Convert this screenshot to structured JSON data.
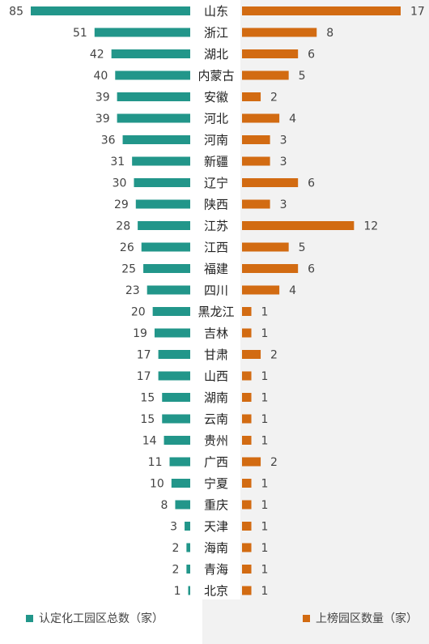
{
  "colors": {
    "left_bar": "#22968a",
    "right_bar": "#d26b12",
    "right_panel_bg": "#f2f2f2",
    "label_text": "#222222",
    "value_text": "#444444"
  },
  "chart_data": {
    "type": "bar",
    "orientation": "horizontal",
    "layout": "butterfly",
    "categories": [
      "山东",
      "浙江",
      "湖北",
      "内蒙古",
      "安徽",
      "河北",
      "河南",
      "新疆",
      "辽宁",
      "陕西",
      "江苏",
      "江西",
      "福建",
      "四川",
      "黑龙江",
      "吉林",
      "甘肃",
      "山西",
      "湖南",
      "云南",
      "贵州",
      "广西",
      "宁夏",
      "重庆",
      "天津",
      "海南",
      "青海",
      "北京"
    ],
    "series": [
      {
        "name": "认定化工园区总数（家）",
        "side": "left",
        "values": [
          85,
          51,
          42,
          40,
          39,
          39,
          36,
          31,
          30,
          29,
          28,
          26,
          25,
          23,
          20,
          19,
          17,
          17,
          15,
          15,
          14,
          11,
          10,
          8,
          3,
          2,
          2,
          1
        ]
      },
      {
        "name": "上榜园区数量（家）",
        "side": "right",
        "values": [
          17,
          8,
          6,
          5,
          2,
          4,
          3,
          3,
          6,
          3,
          12,
          5,
          6,
          4,
          1,
          1,
          2,
          1,
          1,
          1,
          1,
          2,
          1,
          1,
          1,
          1,
          1,
          1
        ]
      }
    ],
    "legend_position": "bottom",
    "grid": false
  },
  "legend": {
    "left_label": "认定化工园区总数（家）",
    "right_label": "上榜园区数量（家）"
  }
}
